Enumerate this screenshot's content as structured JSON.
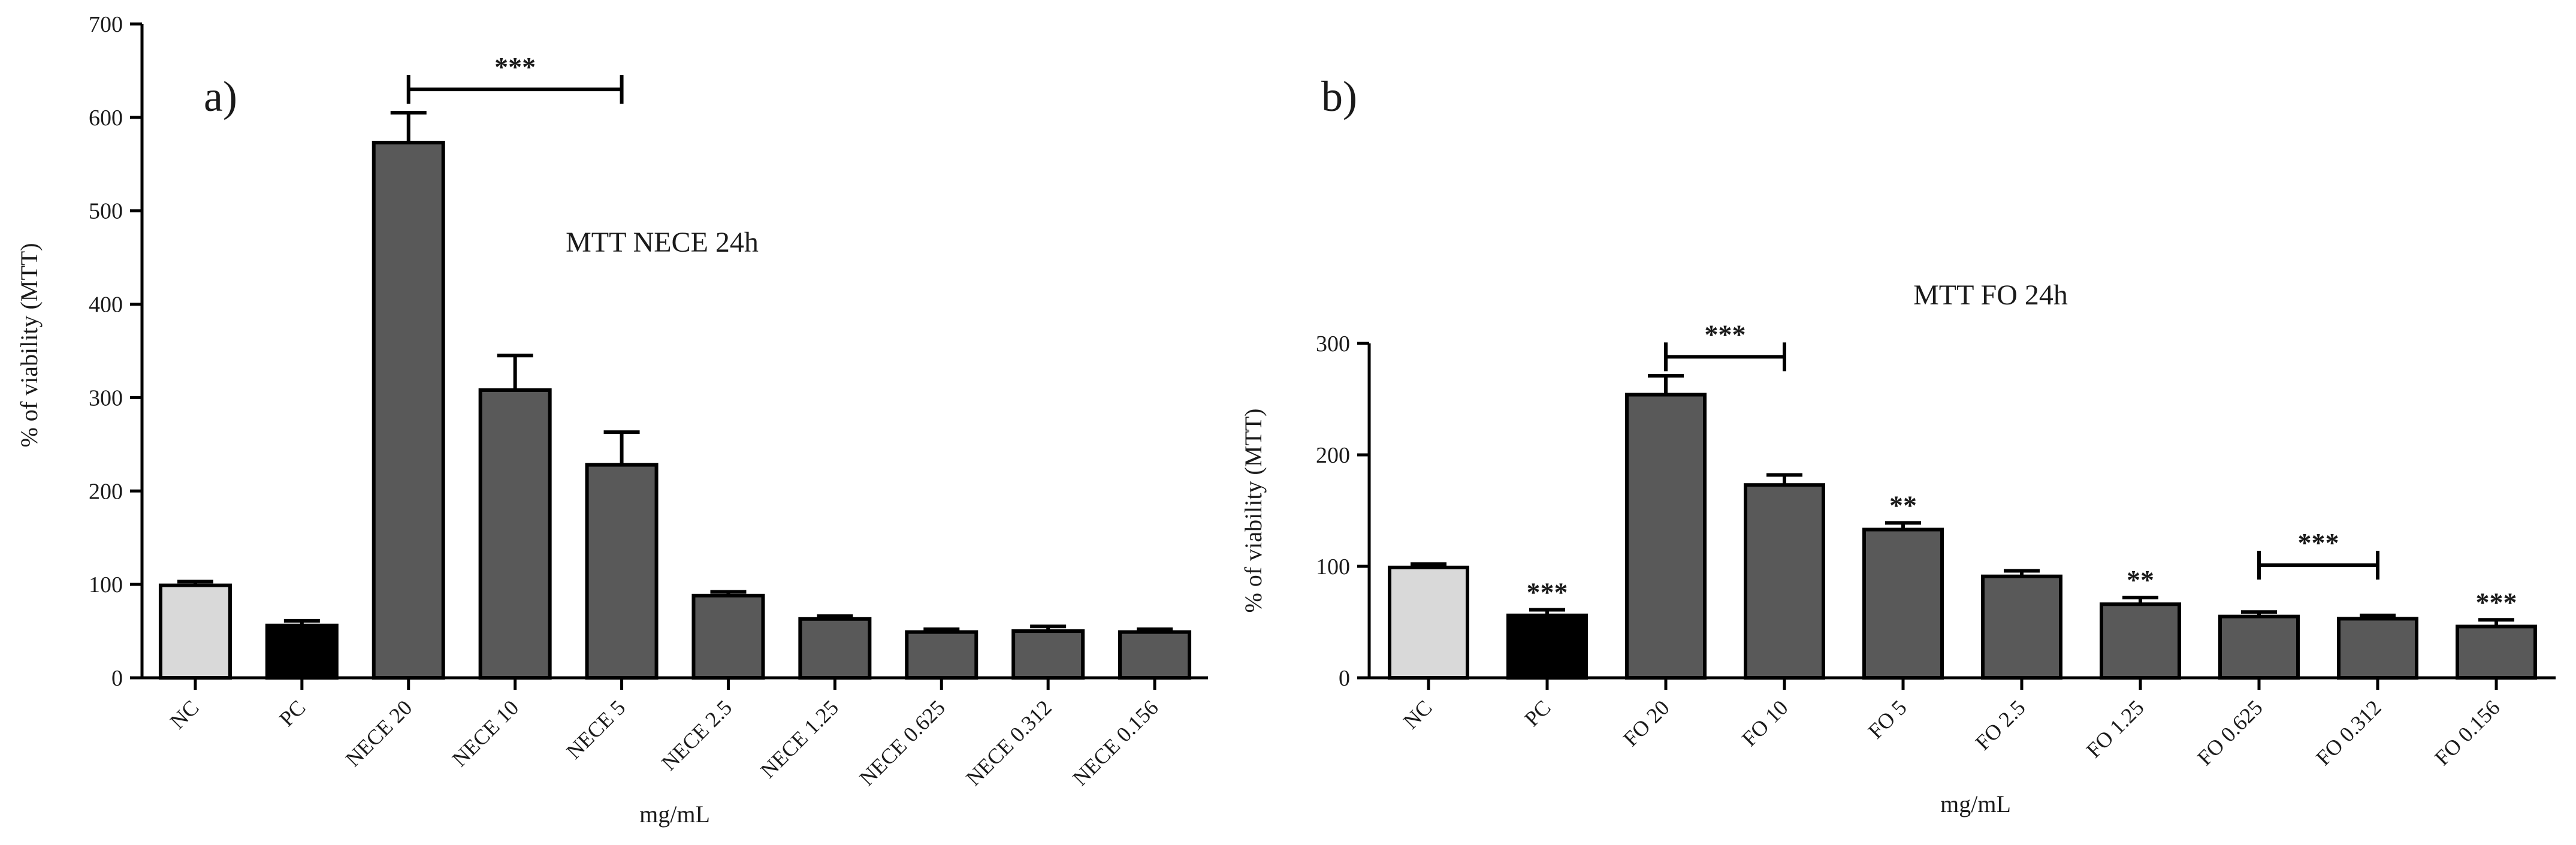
{
  "colors": {
    "nc": "#d9d9d9",
    "pc": "#000000",
    "treatment": "#595959"
  },
  "chart_data": [
    {
      "type": "bar",
      "panel_letter": "a)",
      "title": "MTT NECE 24h",
      "xlabel": "mg/mL",
      "ylabel": "% of viability (MTT)",
      "ylim": [
        0,
        700
      ],
      "yticks": [
        "0",
        "100",
        "200",
        "300",
        "400",
        "500",
        "600",
        "700"
      ],
      "grid": false,
      "categories": [
        "NC",
        "PC",
        "NECE 20",
        "NECE 10",
        "NECE 5",
        "NECE 2.5",
        "NECE 1.25",
        "NECE 0.625",
        "NECE 0.312",
        "NECE 0.156"
      ],
      "values": [
        99,
        56,
        573,
        308,
        228,
        88,
        63,
        49,
        50,
        49
      ],
      "errors": [
        4,
        5,
        32,
        37,
        35,
        4,
        3,
        3,
        5,
        3
      ],
      "bar_colors": [
        "nc",
        "pc",
        "treatment",
        "treatment",
        "treatment",
        "treatment",
        "treatment",
        "treatment",
        "treatment",
        "treatment"
      ],
      "annotations": [
        {
          "text": "***",
          "type": "bracket",
          "from": 2,
          "to": 4,
          "y": 630
        }
      ]
    },
    {
      "type": "bar",
      "panel_letter": "b)",
      "title": "MTT FO 24h",
      "xlabel": "mg/mL",
      "ylabel": "% of viability (MTT)",
      "ylim": [
        0,
        300
      ],
      "yticks": [
        "0",
        "100",
        "200",
        "300"
      ],
      "grid": false,
      "categories": [
        "NC",
        "PC",
        "FO 20",
        "FO 10",
        "FO 5",
        "FO 2.5",
        "FO 1.25",
        "FO 0.625",
        "FO 0.312",
        "FO 0.156"
      ],
      "values": [
        99,
        56,
        254,
        173,
        133,
        91,
        66,
        55,
        53,
        46
      ],
      "errors": [
        3,
        5,
        17,
        9,
        6,
        5,
        6,
        4,
        3,
        6
      ],
      "bar_colors": [
        "nc",
        "pc",
        "treatment",
        "treatment",
        "treatment",
        "treatment",
        "treatment",
        "treatment",
        "treatment",
        "treatment"
      ],
      "annotations": [
        {
          "text": "***",
          "type": "label",
          "index": 1
        },
        {
          "text": "***",
          "type": "bracket",
          "from": 2,
          "to": 3,
          "y": 288
        },
        {
          "text": "**",
          "type": "label",
          "index": 4
        },
        {
          "text": "**",
          "type": "label",
          "index": 6
        },
        {
          "text": "***",
          "type": "bracket",
          "from": 7,
          "to": 8,
          "y": 101
        },
        {
          "text": "***",
          "type": "label",
          "index": 9
        }
      ]
    }
  ]
}
